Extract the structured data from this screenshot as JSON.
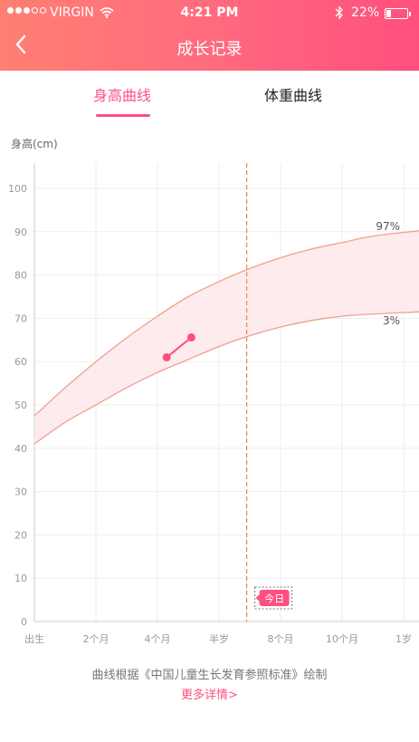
{
  "status_bar": {
    "carrier": "VIRGIN",
    "time": "4:21 PM",
    "battery": "22%",
    "icons": [
      "signal-dots-icon",
      "wifi-icon",
      "bluetooth-icon",
      "battery-icon"
    ]
  },
  "nav": {
    "title": "成长记录",
    "back_icon": "chevron-left-icon"
  },
  "tabs": [
    {
      "label": "身高曲线",
      "active": true
    },
    {
      "label": "体重曲线",
      "active": false
    }
  ],
  "chart_data": {
    "type": "line",
    "ylabel": "身高(cm)",
    "ylim": [
      0,
      100
    ],
    "yticks": [
      0,
      10,
      20,
      30,
      40,
      50,
      60,
      70,
      80,
      90,
      100
    ],
    "xlim": [
      0,
      12
    ],
    "xticks": [
      {
        "x": 0,
        "label": "出生"
      },
      {
        "x": 2,
        "label": "2个月"
      },
      {
        "x": 4,
        "label": "4个月"
      },
      {
        "x": 6,
        "label": "半岁"
      },
      {
        "x": 8,
        "label": "8个月"
      },
      {
        "x": 10,
        "label": "10个月"
      },
      {
        "x": 12,
        "label": "1岁"
      }
    ],
    "grid": true,
    "series": [
      {
        "name": "97%",
        "x": [
          0,
          1,
          2,
          3,
          4,
          5,
          6,
          7,
          8,
          9,
          10,
          11,
          12.5
        ],
        "values": [
          47.5,
          54,
          60,
          65.5,
          70.5,
          75,
          78.5,
          81.5,
          84,
          86,
          87.5,
          89,
          90.2
        ]
      },
      {
        "name": "3%",
        "x": [
          0,
          1,
          2,
          3,
          4,
          5,
          6,
          7,
          8,
          9,
          10,
          11,
          12.5
        ],
        "values": [
          41,
          46,
          50,
          54,
          57.5,
          60.5,
          63.5,
          66,
          68,
          69.5,
          70.5,
          71,
          71.5
        ]
      },
      {
        "name": "",
        "x": [
          4.3,
          5.1
        ],
        "values": [
          61,
          65.6
        ]
      }
    ],
    "today_x": 6.9,
    "today_label": "今日",
    "colors": {
      "band_fill": "#fde6e8",
      "band_line": "#f2a08a",
      "today_line": "#e08760",
      "point": "#ff4f7e",
      "accent": "#ff4f7e"
    }
  },
  "footer": {
    "note": "曲线根据《中国儿童生长发育参照标准》绘制",
    "link": "更多详情>"
  }
}
